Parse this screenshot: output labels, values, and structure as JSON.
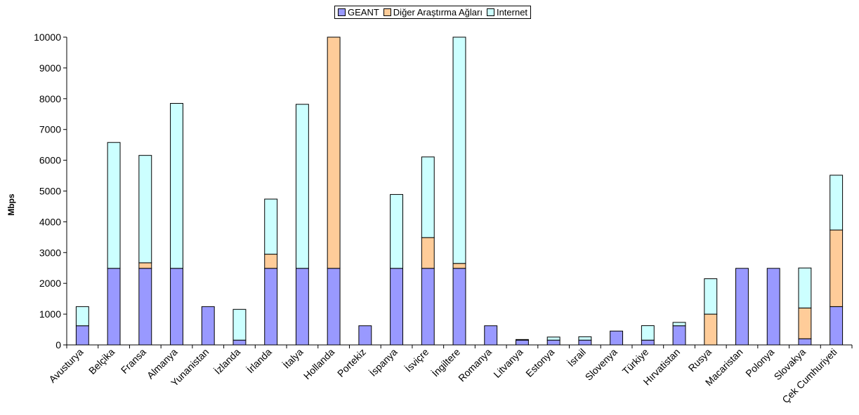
{
  "chart_data": {
    "type": "bar",
    "stacked": true,
    "ylabel": "Mbps",
    "xlabel": "",
    "ylim": [
      0,
      10000
    ],
    "yticks": [
      0,
      1000,
      2000,
      3000,
      4000,
      5000,
      6000,
      7000,
      8000,
      9000,
      10000
    ],
    "grid": false,
    "legend_position": "top-center",
    "categories": [
      "Avusturya",
      "Belçika",
      "Fransa",
      "Almanya",
      "Yunanistan",
      "İzlanda",
      "İrlanda",
      "İtalya",
      "Hollanda",
      "Portekiz",
      "İspanya",
      "İsviçre",
      "İngiltere",
      "Romanya",
      "Litvanya",
      "Estonya",
      "İsrail",
      "Slovenya",
      "Türkiye",
      "Hırvatistan",
      "Rusya",
      "Macaristan",
      "Polonya",
      "Slovakya",
      "Çek Cumhuriyeti"
    ],
    "series": [
      {
        "name": "GEANT",
        "color": "#9999ff",
        "values": [
          622,
          2488,
          2488,
          2488,
          1244,
          155,
          2488,
          2488,
          2488,
          622,
          2488,
          2488,
          2488,
          622,
          155,
          155,
          155,
          450,
          155,
          622,
          0,
          2488,
          2488,
          200,
          1244
        ]
      },
      {
        "name": "Diğer Araştırma Ağları",
        "color": "#ffcc99",
        "values": [
          0,
          0,
          180,
          0,
          0,
          0,
          460,
          0,
          7600,
          0,
          0,
          1000,
          160,
          0,
          0,
          0,
          0,
          0,
          0,
          0,
          1000,
          0,
          0,
          1000,
          2490
        ]
      },
      {
        "name": "Internet",
        "color": "#ccffff",
        "values": [
          622,
          4090,
          3490,
          5360,
          0,
          1000,
          1790,
          5330,
          0,
          0,
          2400,
          2620,
          7500,
          0,
          20,
          100,
          110,
          0,
          470,
          110,
          1150,
          0,
          0,
          1300,
          1780
        ]
      }
    ]
  }
}
